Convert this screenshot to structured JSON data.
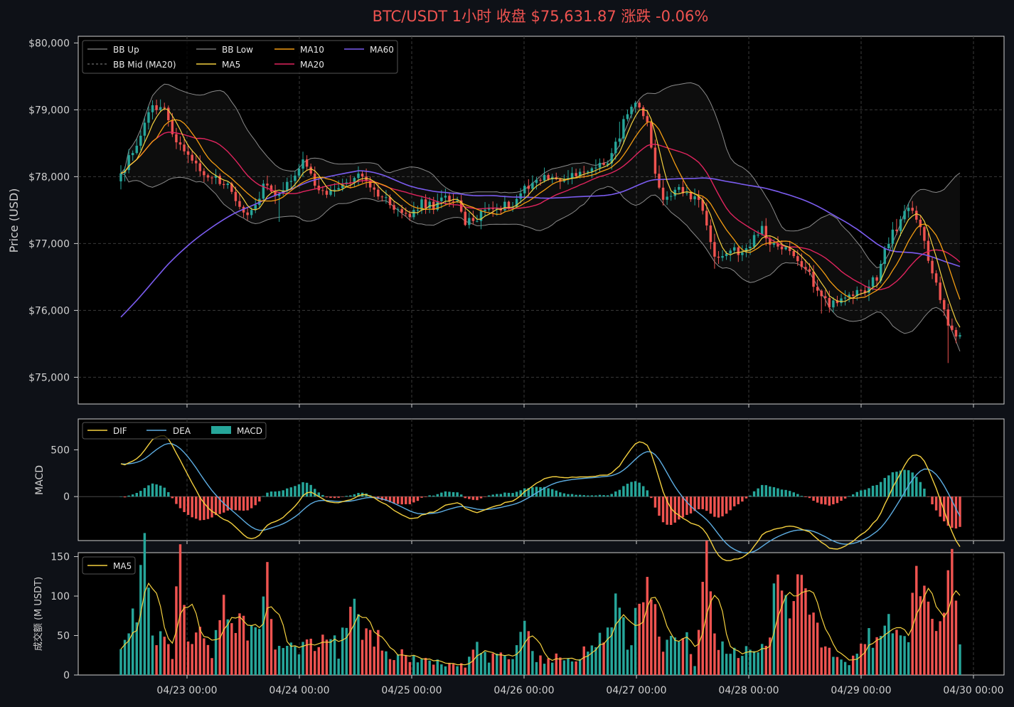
{
  "chart_data": {
    "type": "candlestick",
    "title": "BTC/USDT 1小时   收盘 $75,631.87   涨跌 -0.06%",
    "x_ticks": [
      "04/23 00:00",
      "04/24 00:00",
      "04/25 00:00",
      "04/26 00:00",
      "04/27 00:00",
      "04/28 00:00",
      "04/29 00:00",
      "04/30 00:00"
    ],
    "grid": true,
    "price_panel": {
      "ylabel": "Price (USD)",
      "ylim": [
        74600,
        80100
      ],
      "y_ticks": [
        "$75,000",
        "$76,000",
        "$77,000",
        "$78,000",
        "$79,000",
        "$80,000"
      ],
      "legend_position": "top-left",
      "legend": [
        "BB Up",
        "BB Mid (MA20)",
        "BB Low",
        "MA5",
        "MA10",
        "MA20",
        "MA60"
      ],
      "close_anchors": [
        [
          0,
          78050
        ],
        [
          4,
          78500
        ],
        [
          8,
          79050
        ],
        [
          11,
          79000
        ],
        [
          14,
          78550
        ],
        [
          17,
          78350
        ],
        [
          20,
          78100
        ],
        [
          24,
          77950
        ],
        [
          28,
          77800
        ],
        [
          30,
          77550
        ],
        [
          33,
          77450
        ],
        [
          36,
          77850
        ],
        [
          40,
          77750
        ],
        [
          44,
          78050
        ],
        [
          46,
          78300
        ],
        [
          49,
          77850
        ],
        [
          52,
          77700
        ],
        [
          55,
          77850
        ],
        [
          58,
          77950
        ],
        [
          61,
          78000
        ],
        [
          64,
          77800
        ],
        [
          67,
          77650
        ],
        [
          70,
          77500
        ],
        [
          73,
          77400
        ],
        [
          76,
          77600
        ],
        [
          79,
          77550
        ],
        [
          82,
          77700
        ],
        [
          85,
          77600
        ],
        [
          87,
          77300
        ],
        [
          90,
          77400
        ],
        [
          93,
          77550
        ],
        [
          96,
          77550
        ],
        [
          99,
          77600
        ],
        [
          102,
          77850
        ],
        [
          105,
          77950
        ],
        [
          108,
          78000
        ],
        [
          111,
          77950
        ],
        [
          114,
          78000
        ],
        [
          117,
          78050
        ],
        [
          120,
          78150
        ],
        [
          124,
          78300
        ],
        [
          127,
          78800
        ],
        [
          130,
          79100
        ],
        [
          133,
          78750
        ],
        [
          135,
          78000
        ],
        [
          137,
          77700
        ],
        [
          140,
          77800
        ],
        [
          143,
          77750
        ],
        [
          146,
          77650
        ],
        [
          148,
          77300
        ],
        [
          150,
          76850
        ],
        [
          152,
          76750
        ],
        [
          154,
          76950
        ],
        [
          156,
          76850
        ],
        [
          158,
          76900
        ],
        [
          160,
          77100
        ],
        [
          162,
          77200
        ],
        [
          164,
          76950
        ],
        [
          167,
          76950
        ],
        [
          170,
          76800
        ],
        [
          173,
          76650
        ],
        [
          176,
          76300
        ],
        [
          179,
          76100
        ],
        [
          182,
          76150
        ],
        [
          185,
          76250
        ],
        [
          188,
          76300
        ],
        [
          191,
          76500
        ],
        [
          193,
          76900
        ],
        [
          195,
          77200
        ],
        [
          197,
          77300
        ],
        [
          199,
          77550
        ],
        [
          201,
          77400
        ],
        [
          203,
          77000
        ],
        [
          205,
          76600
        ],
        [
          207,
          76150
        ],
        [
          209,
          75800
        ],
        [
          210,
          75700
        ],
        [
          212,
          75630
        ]
      ]
    },
    "macd_panel": {
      "ylabel": "MACD",
      "ylim": [
        -470,
        830
      ],
      "y_ticks": [
        "0",
        "500"
      ],
      "legend": [
        "DIF",
        "DEA",
        "MACD"
      ]
    },
    "volume_panel": {
      "ylabel": "成交额 (M USDT)",
      "ylim": [
        0,
        155
      ],
      "y_ticks": [
        "0",
        "50",
        "100",
        "150"
      ],
      "legend": [
        "MA5"
      ],
      "volume_anchors": [
        [
          0,
          28
        ],
        [
          3,
          75
        ],
        [
          6,
          146
        ],
        [
          7,
          112
        ],
        [
          8,
          65
        ],
        [
          10,
          48
        ],
        [
          13,
          28
        ],
        [
          14,
          100
        ],
        [
          15,
          138
        ],
        [
          17,
          60
        ],
        [
          20,
          50
        ],
        [
          23,
          30
        ],
        [
          26,
          88
        ],
        [
          28,
          62
        ],
        [
          30,
          86
        ],
        [
          32,
          60
        ],
        [
          35,
          75
        ],
        [
          37,
          134
        ],
        [
          39,
          48
        ],
        [
          42,
          42
        ],
        [
          45,
          40
        ],
        [
          48,
          52
        ],
        [
          50,
          40
        ],
        [
          53,
          58
        ],
        [
          55,
          30
        ],
        [
          58,
          90
        ],
        [
          61,
          55
        ],
        [
          63,
          58
        ],
        [
          66,
          40
        ],
        [
          69,
          25
        ],
        [
          72,
          30
        ],
        [
          75,
          15
        ],
        [
          78,
          22
        ],
        [
          81,
          15
        ],
        [
          84,
          18
        ],
        [
          87,
          12
        ],
        [
          90,
          35
        ],
        [
          93,
          20
        ],
        [
          96,
          30
        ],
        [
          99,
          22
        ],
        [
          102,
          60
        ],
        [
          105,
          22
        ],
        [
          108,
          18
        ],
        [
          111,
          30
        ],
        [
          114,
          20
        ],
        [
          117,
          30
        ],
        [
          120,
          40
        ],
        [
          123,
          60
        ],
        [
          125,
          118
        ],
        [
          128,
          30
        ],
        [
          131,
          90
        ],
        [
          133,
          145
        ],
        [
          136,
          45
        ],
        [
          139,
          40
        ],
        [
          142,
          62
        ],
        [
          145,
          15
        ],
        [
          148,
          145
        ],
        [
          151,
          42
        ],
        [
          154,
          30
        ],
        [
          157,
          28
        ],
        [
          160,
          35
        ],
        [
          163,
          30
        ],
        [
          166,
          125
        ],
        [
          169,
          85
        ],
        [
          172,
          125
        ],
        [
          175,
          78
        ],
        [
          178,
          40
        ],
        [
          181,
          25
        ],
        [
          184,
          15
        ],
        [
          187,
          48
        ],
        [
          190,
          50
        ],
        [
          193,
          85
        ],
        [
          196,
          55
        ],
        [
          199,
          55
        ],
        [
          201,
          140
        ],
        [
          203,
          102
        ],
        [
          206,
          55
        ],
        [
          208,
          100
        ],
        [
          210,
          145
        ],
        [
          212,
          35
        ]
      ]
    }
  }
}
